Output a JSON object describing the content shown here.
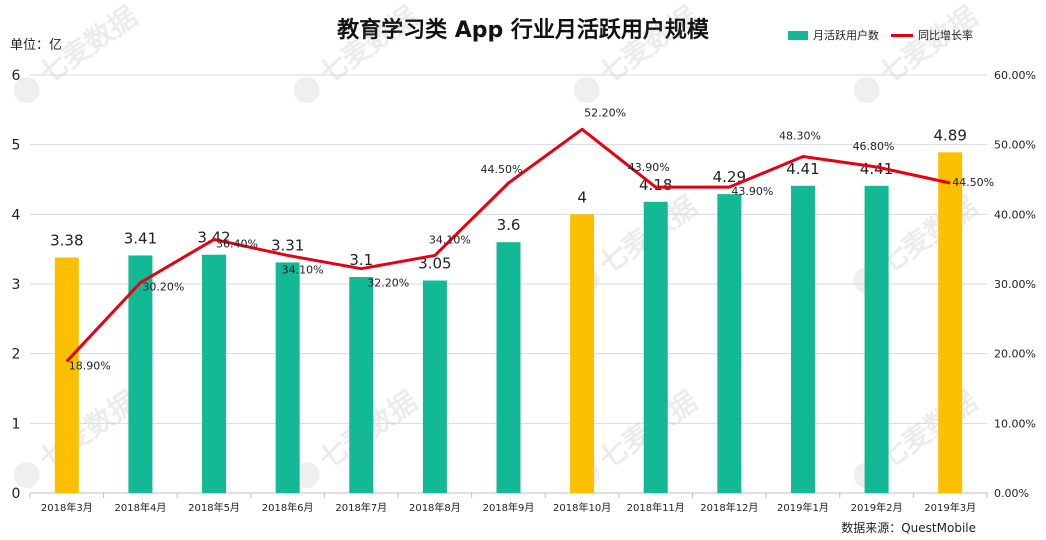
{
  "chart_data": {
    "type": "bar",
    "title": "教育学习类 App 行业月活跃用户规模",
    "unit_label": "单位：亿",
    "source": "数据来源：QuestMobile",
    "categories": [
      "2018年3月",
      "2018年4月",
      "2018年5月",
      "2018年6月",
      "2018年7月",
      "2018年8月",
      "2018年9月",
      "2018年10月",
      "2018年11月",
      "2018年12月",
      "2019年1月",
      "2019年2月",
      "2019年3月"
    ],
    "series": [
      {
        "name": "月活跃用户数",
        "type": "bar",
        "axis": "left",
        "values": [
          3.38,
          3.41,
          3.42,
          3.31,
          3.1,
          3.05,
          3.6,
          4,
          4.18,
          4.29,
          4.41,
          4.41,
          4.89
        ],
        "labels": [
          "3.38",
          "3.41",
          "3.42",
          "3.31",
          "3.1",
          "3.05",
          "3.6",
          "4",
          "4.18",
          "4.29",
          "4.41",
          "4.41",
          "4.89"
        ],
        "highlight": [
          true,
          false,
          false,
          false,
          false,
          false,
          false,
          true,
          false,
          false,
          false,
          false,
          true
        ]
      },
      {
        "name": "同比增长率",
        "type": "line",
        "axis": "right",
        "values": [
          18.9,
          30.2,
          36.4,
          34.1,
          32.2,
          34.1,
          44.5,
          52.2,
          43.9,
          43.9,
          48.3,
          46.8,
          44.5
        ],
        "labels": [
          "18.90%",
          "30.20%",
          "36.40%",
          "34.10%",
          "32.20%",
          "34.10%",
          "44.50%",
          "52.20%",
          "43.90%",
          "43.90%",
          "48.30%",
          "46.80%",
          "44.50%"
        ]
      }
    ],
    "y_left": {
      "ylim": [
        0,
        6
      ],
      "ticks": [
        "0",
        "1",
        "2",
        "3",
        "4",
        "5",
        "6"
      ]
    },
    "y_right": {
      "ylim": [
        0,
        60
      ],
      "ticks": [
        "0.00%",
        "10.00%",
        "20.00%",
        "30.00%",
        "40.00%",
        "50.00%",
        "60.00%"
      ]
    },
    "grid": true,
    "legend_position": "top-right",
    "colors": {
      "bar": "#13B994",
      "bar_highlight": "#FCC000",
      "line": "#E60012",
      "grid": "#D9D9D9"
    },
    "watermark": "七麦数据"
  }
}
